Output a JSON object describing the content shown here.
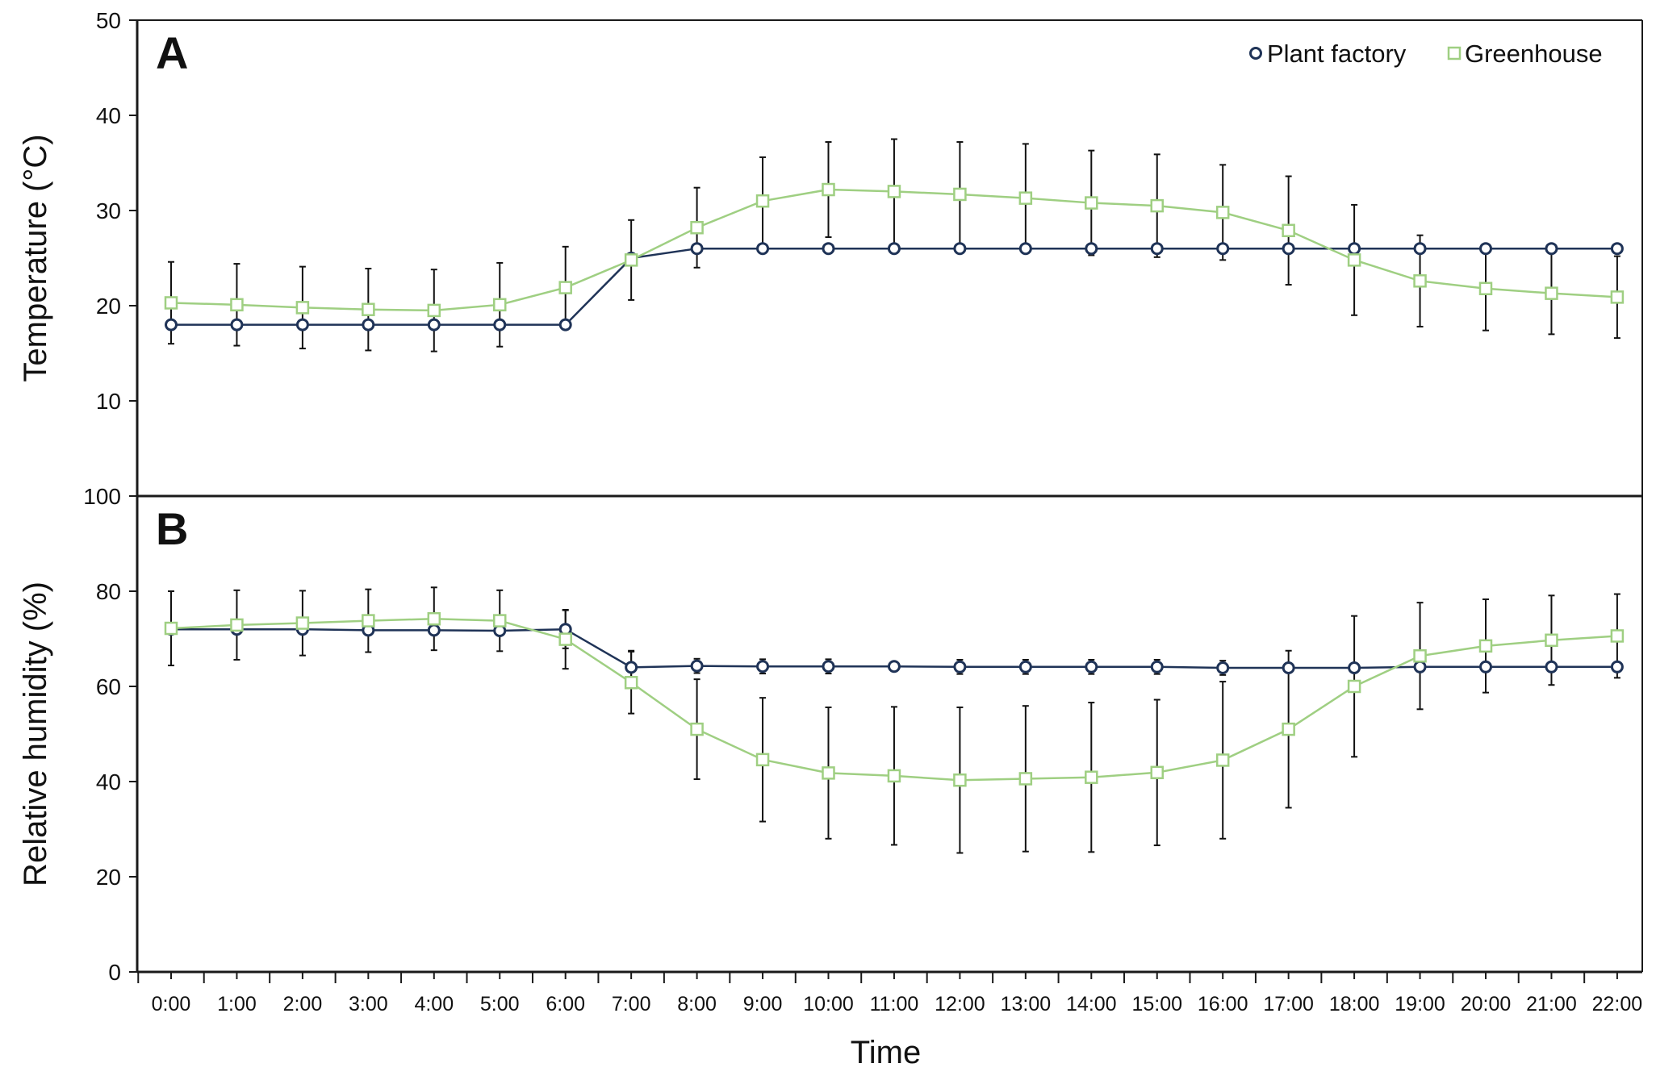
{
  "chart_data": {
    "type": "line",
    "shared_x_label": "Time",
    "x": [
      "0:00",
      "1:00",
      "2:00",
      "3:00",
      "4:00",
      "5:00",
      "6:00",
      "7:00",
      "8:00",
      "9:00",
      "10:00",
      "11:00",
      "12:00",
      "13:00",
      "14:00",
      "15:00",
      "16:00",
      "17:00",
      "18:00",
      "19:00",
      "20:00",
      "21:00",
      "22:00"
    ],
    "legend": {
      "position": "top-right",
      "entries": [
        "Plant factory",
        "Greenhouse"
      ]
    },
    "series_colors": {
      "Plant factory": "#1f3357",
      "Greenhouse": "#9fcf82"
    },
    "panels": [
      {
        "label": "A",
        "ylabel": "Temperature (°C)",
        "ylim": [
          0,
          50
        ],
        "yticks": [
          10,
          20,
          30,
          40,
          50
        ],
        "series": [
          {
            "name": "Plant factory",
            "marker": "circle",
            "values": [
              18,
              18,
              18,
              18,
              18,
              18,
              18,
              25,
              26,
              26,
              26,
              26,
              26,
              26,
              26,
              26,
              26,
              26,
              26,
              26,
              26,
              26,
              26
            ],
            "errors": [
              0,
              0,
              0,
              0,
              0,
              0,
              0,
              0,
              0,
              0,
              0,
              0,
              0,
              0,
              0,
              0,
              0,
              0,
              0,
              0,
              0,
              0,
              0
            ]
          },
          {
            "name": "Greenhouse",
            "marker": "square",
            "values": [
              20.3,
              20.1,
              19.8,
              19.6,
              19.5,
              20.1,
              21.9,
              24.8,
              28.2,
              31.0,
              32.2,
              32.0,
              31.7,
              31.3,
              30.8,
              30.5,
              29.8,
              27.9,
              24.8,
              22.6,
              21.8,
              21.3,
              20.9
            ],
            "errors": [
              4.3,
              4.3,
              4.3,
              4.3,
              4.3,
              4.4,
              4.3,
              4.2,
              4.2,
              4.6,
              5.0,
              5.5,
              5.5,
              5.7,
              5.5,
              5.4,
              5.0,
              5.7,
              5.8,
              4.8,
              4.4,
              4.3,
              4.3
            ]
          }
        ]
      },
      {
        "label": "B",
        "ylabel": "Relative humidity (%)",
        "ylim": [
          0,
          100
        ],
        "yticks": [
          0,
          20,
          40,
          60,
          80,
          100
        ],
        "series": [
          {
            "name": "Plant factory",
            "marker": "circle",
            "values": [
              72,
              72,
              72,
              71.8,
              71.8,
              71.7,
              72,
              64,
              64.3,
              64.2,
              64.2,
              64.2,
              64.1,
              64.1,
              64.1,
              64.1,
              63.9,
              63.9,
              63.9,
              64.1,
              64.1,
              64.1,
              64.1
            ],
            "errors": [
              1,
              1,
              1,
              1,
              1,
              1,
              4,
              3.5,
              1.5,
              1.5,
              1.5,
              1,
              1.5,
              1.5,
              1.5,
              1.5,
              1.5,
              1,
              1,
              1,
              1,
              1,
              1
            ]
          },
          {
            "name": "Greenhouse",
            "marker": "square",
            "values": [
              72.2,
              72.9,
              73.3,
              73.8,
              74.2,
              73.8,
              69.9,
              60.8,
              51.0,
              44.6,
              41.8,
              41.2,
              40.3,
              40.6,
              40.9,
              41.9,
              44.5,
              51.0,
              60.0,
              66.4,
              68.5,
              69.7,
              70.6
            ],
            "errors": [
              7.8,
              7.3,
              6.8,
              6.6,
              6.6,
              6.4,
              6.2,
              6.5,
              10.5,
              13,
              13.8,
              14.5,
              15.3,
              15.3,
              15.7,
              15.3,
              16.5,
              16.5,
              14.8,
              11.2,
              9.8,
              9.4,
              8.8
            ]
          }
        ]
      }
    ]
  }
}
